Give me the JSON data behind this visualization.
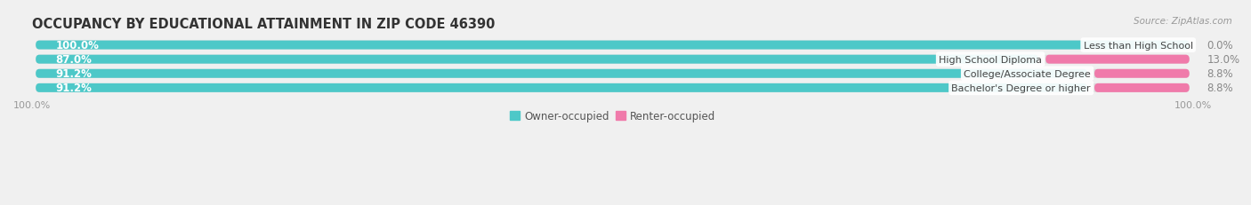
{
  "title": "OCCUPANCY BY EDUCATIONAL ATTAINMENT IN ZIP CODE 46390",
  "source": "Source: ZipAtlas.com",
  "categories": [
    "Less than High School",
    "High School Diploma",
    "College/Associate Degree",
    "Bachelor's Degree or higher"
  ],
  "owner_pct": [
    100.0,
    87.0,
    91.2,
    91.2
  ],
  "renter_pct": [
    0.0,
    13.0,
    8.8,
    8.8
  ],
  "owner_color": "#4dc8c8",
  "renter_color": "#f07aaa",
  "bg_color": "#f0f0f0",
  "bar_bg_color": "#dcdcdc",
  "title_fontsize": 10.5,
  "source_fontsize": 7.5,
  "value_fontsize": 8.5,
  "cat_fontsize": 8.0,
  "axis_label_fontsize": 8,
  "legend_fontsize": 8.5,
  "bar_height": 0.62,
  "bar_spacing": 1.0,
  "xlim": [
    0,
    100
  ]
}
